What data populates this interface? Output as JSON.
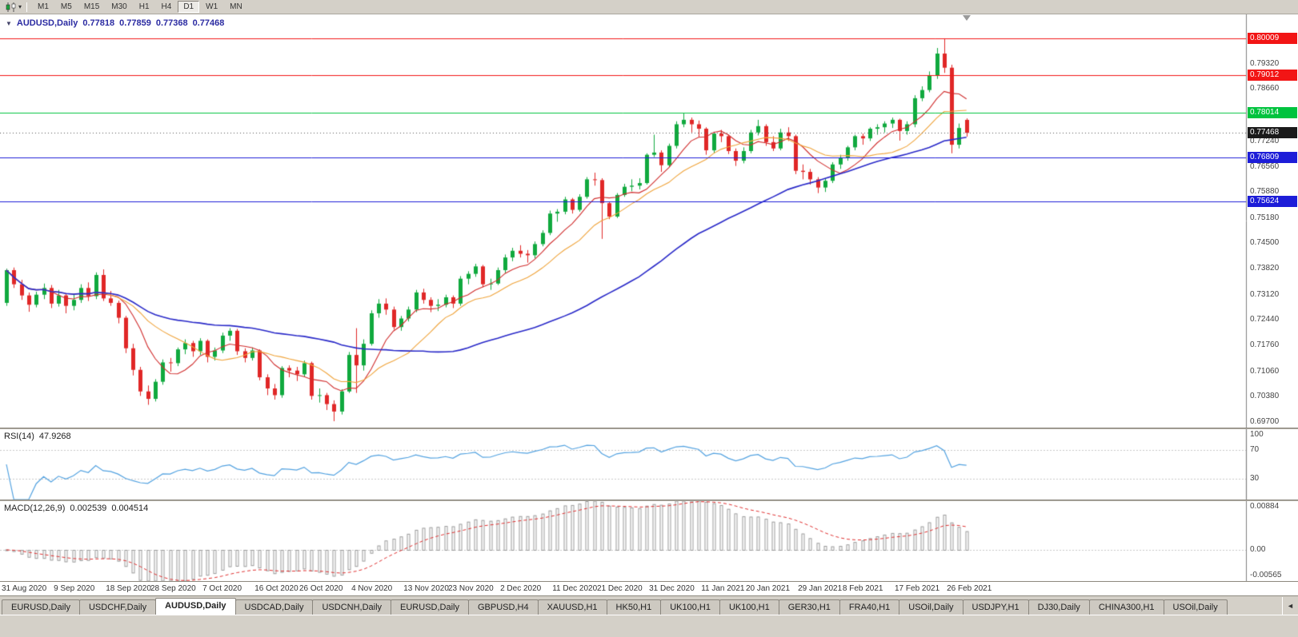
{
  "toolbar": {
    "chart_type_icon": "candlestick-chart-icon",
    "dropdown_icon": "▾",
    "timeframes": [
      "M1",
      "M5",
      "M15",
      "M30",
      "H1",
      "H4",
      "D1",
      "W1",
      "MN"
    ],
    "active_timeframe": "D1"
  },
  "chart_header": {
    "collapse_icon": "▼",
    "title": "AUDUSD,Daily",
    "open": "0.77818",
    "high": "0.77859",
    "low": "0.77368",
    "close": "0.77468"
  },
  "price_axis": {
    "ticks": [
      "0.79320",
      "0.78660",
      "0.77940",
      "0.77240",
      "0.76560",
      "0.75880",
      "0.75180",
      "0.74500",
      "0.73820",
      "0.73120",
      "0.72440",
      "0.71760",
      "0.71060",
      "0.70380",
      "0.69700"
    ],
    "current_price": "0.77468"
  },
  "hlines": [
    {
      "price": 0.80009,
      "label": "0.80009",
      "color": "#f21515"
    },
    {
      "price": 0.79012,
      "label": "0.79012",
      "color": "#f21515"
    },
    {
      "price": 0.78014,
      "label": "0.78014",
      "color": "#00c33e"
    },
    {
      "price": 0.76809,
      "label": "0.76809",
      "color": "#1d1dd8"
    },
    {
      "price": 0.75624,
      "label": "0.75624",
      "color": "#1d1dd8"
    }
  ],
  "rsi": {
    "name": "RSI(14)",
    "value": "47.9268",
    "period": 14,
    "axis_labels": [
      "100",
      "70",
      "30"
    ],
    "levels": [
      70,
      30
    ],
    "line_color": "#53a2e0"
  },
  "macd": {
    "name": "MACD(12,26,9)",
    "value_main": "0.002539",
    "value_signal": "0.004514",
    "fast": 12,
    "slow": 26,
    "signal": 9,
    "axis_labels": [
      "0.00884",
      "0.00",
      "-0.00565"
    ],
    "axis_max": 0.00884,
    "axis_min": -0.00565,
    "histogram_color": "#9a9a9a",
    "signal_color": "#e03030"
  },
  "date_axis": {
    "labels": [
      {
        "text": "31 Aug 2020",
        "candle_index": 0
      },
      {
        "text": "9 Sep 2020",
        "candle_index": 7
      },
      {
        "text": "18 Sep 2020",
        "candle_index": 14
      },
      {
        "text": "28 Sep 2020",
        "candle_index": 20
      },
      {
        "text": "7 Oct 2020",
        "candle_index": 27
      },
      {
        "text": "16 Oct 2020",
        "candle_index": 34
      },
      {
        "text": "26 Oct 2020",
        "candle_index": 40
      },
      {
        "text": "4 Nov 2020",
        "candle_index": 47
      },
      {
        "text": "13 Nov 2020",
        "candle_index": 54
      },
      {
        "text": "23 Nov 2020",
        "candle_index": 60
      },
      {
        "text": "2 Dec 2020",
        "candle_index": 67
      },
      {
        "text": "11 Dec 2020",
        "candle_index": 74
      },
      {
        "text": "21 Dec 2020",
        "candle_index": 80
      },
      {
        "text": "31 Dec 2020",
        "candle_index": 87
      },
      {
        "text": "11 Jan 2021",
        "candle_index": 94
      },
      {
        "text": "20 Jan 2021",
        "candle_index": 100
      },
      {
        "text": "29 Jan 2021",
        "candle_index": 107
      },
      {
        "text": "8 Feb 2021",
        "candle_index": 113
      },
      {
        "text": "17 Feb 2021",
        "candle_index": 120
      },
      {
        "text": "26 Feb 2021",
        "candle_index": 127
      }
    ]
  },
  "tabs": {
    "scroll_left_icon": "◄",
    "items": [
      {
        "label": "EURUSD,Daily",
        "active": false
      },
      {
        "label": "USDCHF,Daily",
        "active": false
      },
      {
        "label": "AUDUSD,Daily",
        "active": true
      },
      {
        "label": "USDCAD,Daily",
        "active": false
      },
      {
        "label": "USDCNH,Daily",
        "active": false
      },
      {
        "label": "EURUSD,Daily",
        "active": false
      },
      {
        "label": "GBPUSD,H4",
        "active": false
      },
      {
        "label": "XAUUSD,H1",
        "active": false
      },
      {
        "label": "HK50,H1",
        "active": false
      },
      {
        "label": "UK100,H1",
        "active": false
      },
      {
        "label": "UK100,H1",
        "active": false
      },
      {
        "label": "GER30,H1",
        "active": false
      },
      {
        "label": "FRA40,H1",
        "active": false
      },
      {
        "label": "USOil,Daily",
        "active": false
      },
      {
        "label": "USDJPY,H1",
        "active": false
      },
      {
        "label": "DJ30,Daily",
        "active": false
      },
      {
        "label": "CHINA300,H1",
        "active": false
      },
      {
        "label": "USOil,Daily",
        "active": false
      }
    ]
  },
  "chart_data": {
    "type": "candlestick",
    "symbol": "AUDUSD",
    "timeframe": "Daily",
    "up_color": "#10a93e",
    "down_color": "#e02727",
    "price_range": {
      "max": 0.80653,
      "min": 0.69548
    },
    "moving_averages": [
      {
        "period": 7,
        "color": "#d02c2c"
      },
      {
        "period": 14,
        "color": "#efa33a"
      },
      {
        "period": 45,
        "color": "#2929c8"
      }
    ],
    "candles": [
      [
        0.729,
        0.7382,
        0.7282,
        0.7378
      ],
      [
        0.7378,
        0.7385,
        0.733,
        0.734
      ],
      [
        0.734,
        0.7352,
        0.7298,
        0.731
      ],
      [
        0.731,
        0.7318,
        0.7266,
        0.7285
      ],
      [
        0.7285,
        0.732,
        0.7278,
        0.7312
      ],
      [
        0.7312,
        0.7342,
        0.73,
        0.733
      ],
      [
        0.733,
        0.7338,
        0.7276,
        0.7288
      ],
      [
        0.7288,
        0.7325,
        0.728,
        0.731
      ],
      [
        0.731,
        0.7316,
        0.7262,
        0.7282
      ],
      [
        0.7282,
        0.7312,
        0.727,
        0.7298
      ],
      [
        0.7298,
        0.734,
        0.729,
        0.733
      ],
      [
        0.733,
        0.7345,
        0.7295,
        0.7308
      ],
      [
        0.7308,
        0.7372,
        0.73,
        0.7365
      ],
      [
        0.7365,
        0.738,
        0.7295,
        0.7302
      ],
      [
        0.7302,
        0.7322,
        0.7282,
        0.729
      ],
      [
        0.729,
        0.7296,
        0.7235,
        0.725
      ],
      [
        0.725,
        0.7255,
        0.7155,
        0.7168
      ],
      [
        0.7168,
        0.718,
        0.7095,
        0.711
      ],
      [
        0.711,
        0.7118,
        0.704,
        0.7052
      ],
      [
        0.7052,
        0.7068,
        0.7016,
        0.7032
      ],
      [
        0.7032,
        0.7085,
        0.7025,
        0.7078
      ],
      [
        0.7078,
        0.7138,
        0.707,
        0.713
      ],
      [
        0.713,
        0.7142,
        0.7105,
        0.7128
      ],
      [
        0.7128,
        0.717,
        0.712,
        0.7165
      ],
      [
        0.7165,
        0.7192,
        0.7152,
        0.7182
      ],
      [
        0.7182,
        0.7188,
        0.7145,
        0.716
      ],
      [
        0.716,
        0.7195,
        0.715,
        0.7188
      ],
      [
        0.7188,
        0.7192,
        0.713,
        0.7145
      ],
      [
        0.7145,
        0.717,
        0.7135,
        0.7162
      ],
      [
        0.7162,
        0.721,
        0.7155,
        0.7202
      ],
      [
        0.7202,
        0.7222,
        0.7188,
        0.7215
      ],
      [
        0.7215,
        0.722,
        0.715,
        0.716
      ],
      [
        0.716,
        0.7168,
        0.713,
        0.7142
      ],
      [
        0.7142,
        0.717,
        0.7135,
        0.7162
      ],
      [
        0.7162,
        0.7165,
        0.7082,
        0.709
      ],
      [
        0.709,
        0.7098,
        0.7042,
        0.706
      ],
      [
        0.706,
        0.7072,
        0.703,
        0.7042
      ],
      [
        0.7042,
        0.712,
        0.7035,
        0.7115
      ],
      [
        0.7115,
        0.7122,
        0.709,
        0.7108
      ],
      [
        0.7108,
        0.7118,
        0.708,
        0.7098
      ],
      [
        0.7098,
        0.7135,
        0.7092,
        0.7128
      ],
      [
        0.7128,
        0.7132,
        0.703,
        0.704
      ],
      [
        0.704,
        0.706,
        0.7022,
        0.7042
      ],
      [
        0.7042,
        0.7048,
        0.7002,
        0.7018
      ],
      [
        0.7018,
        0.7028,
        0.6972,
        0.6998
      ],
      [
        0.6998,
        0.7058,
        0.699,
        0.7052
      ],
      [
        0.7052,
        0.7158,
        0.7048,
        0.715
      ],
      [
        0.715,
        0.7222,
        0.7048,
        0.7122
      ],
      [
        0.7122,
        0.7192,
        0.7108,
        0.718
      ],
      [
        0.718,
        0.727,
        0.7175,
        0.7262
      ],
      [
        0.7262,
        0.73,
        0.725,
        0.7288
      ],
      [
        0.7288,
        0.7302,
        0.7258,
        0.7272
      ],
      [
        0.7272,
        0.728,
        0.7218,
        0.7225
      ],
      [
        0.7225,
        0.7255,
        0.7215,
        0.7248
      ],
      [
        0.7248,
        0.728,
        0.724,
        0.7272
      ],
      [
        0.7272,
        0.7325,
        0.7265,
        0.7318
      ],
      [
        0.7318,
        0.7328,
        0.7288,
        0.7298
      ],
      [
        0.7298,
        0.7305,
        0.7265,
        0.7282
      ],
      [
        0.7282,
        0.73,
        0.7268,
        0.7285
      ],
      [
        0.7285,
        0.7312,
        0.7278,
        0.7305
      ],
      [
        0.7305,
        0.731,
        0.7276,
        0.7288
      ],
      [
        0.7288,
        0.7362,
        0.7282,
        0.7355
      ],
      [
        0.7355,
        0.7375,
        0.734,
        0.7368
      ],
      [
        0.7368,
        0.7395,
        0.736,
        0.7388
      ],
      [
        0.7388,
        0.7392,
        0.7332,
        0.734
      ],
      [
        0.734,
        0.7355,
        0.7325,
        0.7342
      ],
      [
        0.7342,
        0.7385,
        0.7338,
        0.7378
      ],
      [
        0.7378,
        0.742,
        0.737,
        0.7412
      ],
      [
        0.7412,
        0.7438,
        0.7402,
        0.743
      ],
      [
        0.743,
        0.7445,
        0.7412,
        0.7422
      ],
      [
        0.7422,
        0.7432,
        0.7398,
        0.7418
      ],
      [
        0.7418,
        0.7455,
        0.741,
        0.7448
      ],
      [
        0.7448,
        0.7485,
        0.7442,
        0.7478
      ],
      [
        0.7478,
        0.7538,
        0.7472,
        0.753
      ],
      [
        0.753,
        0.7542,
        0.7508,
        0.7535
      ],
      [
        0.7535,
        0.7575,
        0.7528,
        0.7568
      ],
      [
        0.7568,
        0.7572,
        0.753,
        0.754
      ],
      [
        0.754,
        0.7582,
        0.7535,
        0.7575
      ],
      [
        0.7575,
        0.7628,
        0.757,
        0.7622
      ],
      [
        0.7622,
        0.764,
        0.7605,
        0.762
      ],
      [
        0.762,
        0.7625,
        0.7462,
        0.7558
      ],
      [
        0.7558,
        0.7562,
        0.7515,
        0.7522
      ],
      [
        0.7522,
        0.7585,
        0.7518,
        0.758
      ],
      [
        0.758,
        0.761,
        0.7575,
        0.7602
      ],
      [
        0.7602,
        0.7622,
        0.759,
        0.7605
      ],
      [
        0.7605,
        0.7625,
        0.7595,
        0.7612
      ],
      [
        0.7612,
        0.7692,
        0.7608,
        0.7688
      ],
      [
        0.7688,
        0.7742,
        0.7682,
        0.7694
      ],
      [
        0.7694,
        0.77,
        0.7642,
        0.766
      ],
      [
        0.766,
        0.7718,
        0.7655,
        0.7712
      ],
      [
        0.7712,
        0.7778,
        0.7705,
        0.777
      ],
      [
        0.777,
        0.78,
        0.7762,
        0.7782
      ],
      [
        0.7782,
        0.7788,
        0.7748,
        0.777
      ],
      [
        0.777,
        0.778,
        0.7735,
        0.7758
      ],
      [
        0.7758,
        0.7762,
        0.7688,
        0.77
      ],
      [
        0.77,
        0.775,
        0.7692,
        0.7745
      ],
      [
        0.7745,
        0.7755,
        0.7722,
        0.7738
      ],
      [
        0.7738,
        0.7742,
        0.769,
        0.7698
      ],
      [
        0.7698,
        0.7705,
        0.7658,
        0.7672
      ],
      [
        0.7672,
        0.7708,
        0.7665,
        0.7698
      ],
      [
        0.7698,
        0.7755,
        0.7692,
        0.7748
      ],
      [
        0.7748,
        0.7782,
        0.774,
        0.7765
      ],
      [
        0.7765,
        0.777,
        0.7712,
        0.7722
      ],
      [
        0.7722,
        0.7738,
        0.7698,
        0.7705
      ],
      [
        0.7705,
        0.7758,
        0.77,
        0.7748
      ],
      [
        0.7748,
        0.7762,
        0.7725,
        0.7738
      ],
      [
        0.7738,
        0.7742,
        0.7636,
        0.7645
      ],
      [
        0.7645,
        0.7662,
        0.7622,
        0.7642
      ],
      [
        0.7642,
        0.765,
        0.7608,
        0.7622
      ],
      [
        0.7622,
        0.7628,
        0.7585,
        0.76
      ],
      [
        0.76,
        0.7625,
        0.7588,
        0.7618
      ],
      [
        0.7618,
        0.7668,
        0.7612,
        0.7662
      ],
      [
        0.7662,
        0.7688,
        0.765,
        0.768
      ],
      [
        0.768,
        0.7712,
        0.7672,
        0.7708
      ],
      [
        0.7708,
        0.7742,
        0.77,
        0.7738
      ],
      [
        0.7738,
        0.7745,
        0.7715,
        0.7732
      ],
      [
        0.7732,
        0.7762,
        0.7725,
        0.7758
      ],
      [
        0.7758,
        0.777,
        0.7742,
        0.7762
      ],
      [
        0.7762,
        0.7778,
        0.7748,
        0.7772
      ],
      [
        0.7772,
        0.7788,
        0.776,
        0.7782
      ],
      [
        0.7782,
        0.7785,
        0.7726,
        0.7752
      ],
      [
        0.7752,
        0.7778,
        0.7742,
        0.777
      ],
      [
        0.777,
        0.7848,
        0.7762,
        0.784
      ],
      [
        0.784,
        0.7872,
        0.7832,
        0.7862
      ],
      [
        0.7862,
        0.7912,
        0.7856,
        0.7902
      ],
      [
        0.7902,
        0.7975,
        0.7892,
        0.796
      ],
      [
        0.796,
        0.80009,
        0.7908,
        0.7922
      ],
      [
        0.7922,
        0.793,
        0.7692,
        0.7715
      ],
      [
        0.7715,
        0.7772,
        0.7705,
        0.776
      ],
      [
        0.77818,
        0.77859,
        0.77368,
        0.77468
      ]
    ]
  }
}
